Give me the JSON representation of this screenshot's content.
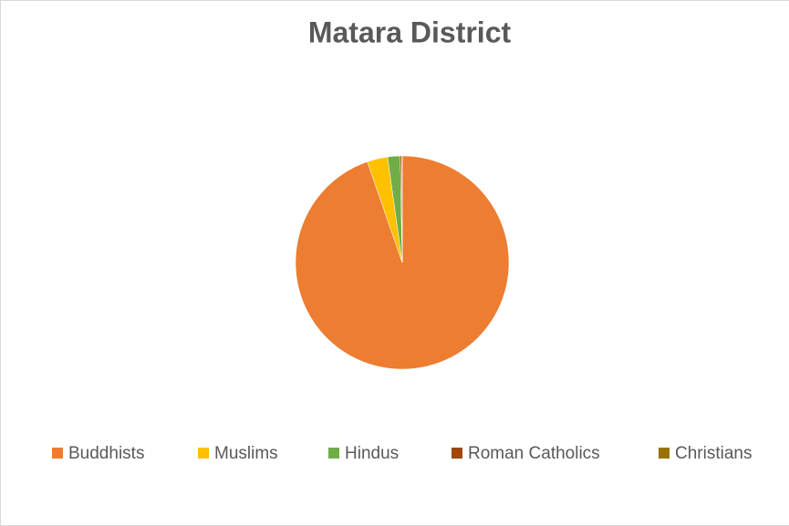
{
  "chart_data": {
    "type": "pie",
    "title": "Matara District",
    "categories": [
      "Buddhists",
      "Muslims",
      "Hindus",
      "Roman Catholics",
      "Christians"
    ],
    "values": [
      94.6,
      3.1,
      1.9,
      0.2,
      0.1
    ],
    "colors": [
      "#ED7D31",
      "#FFC000",
      "#70AD47",
      "#9E480E",
      "#997300"
    ],
    "legend": "bottom"
  }
}
